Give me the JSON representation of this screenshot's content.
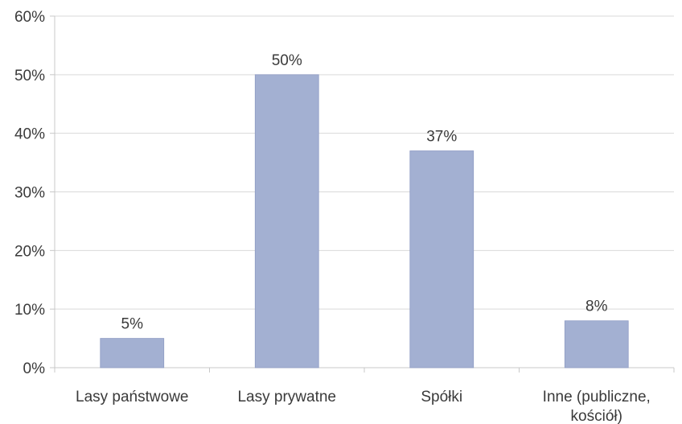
{
  "chart_data": {
    "type": "bar",
    "title": "",
    "xlabel": "",
    "ylabel": "",
    "categories": [
      [
        "Lasy państwowe"
      ],
      [
        "Lasy prywatne"
      ],
      [
        "Spółki"
      ],
      [
        "Inne (publiczne,",
        "kościół)"
      ]
    ],
    "values": [
      5,
      50,
      37,
      8
    ],
    "value_labels": [
      "5%",
      "50%",
      "37%",
      "8%"
    ],
    "ylim": [
      0,
      60
    ],
    "yticks": [
      0,
      10,
      20,
      30,
      40,
      50,
      60
    ],
    "ytick_labels": [
      "0%",
      "10%",
      "20%",
      "30%",
      "40%",
      "50%",
      "60%"
    ],
    "grid": true,
    "legend": "none",
    "colors": {
      "bar": "#a3b0d2",
      "bar_stroke": "#8f9cc4",
      "grid": "#d9d9d9",
      "axis": "#c8c8c8",
      "text": "#3a3a3a"
    }
  }
}
